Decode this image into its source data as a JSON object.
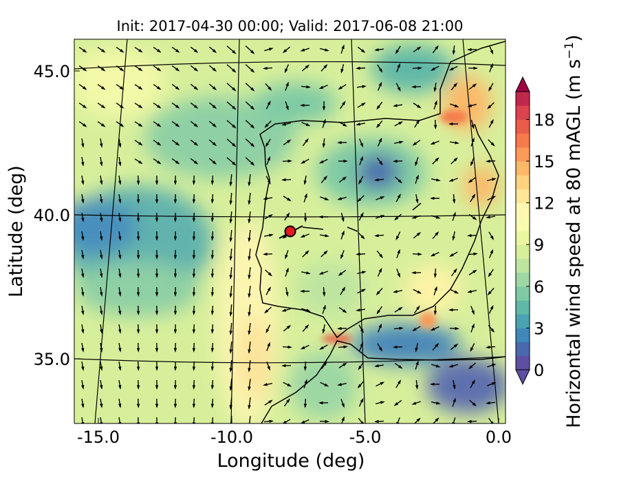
{
  "title": "Init: 2017-04-30 00:00; Valid: 2017-06-08 21:00",
  "chart_data": {
    "type": "heatmap",
    "title": "Init: 2017-04-30 00:00; Valid: 2017-06-08 21:00",
    "xlabel": "Longitude (deg)",
    "ylabel": "Latitude (deg)",
    "x_ticks": [
      "-15.0",
      "-10.0",
      "-5.0",
      "0.0"
    ],
    "y_ticks": [
      "35.0",
      "40.0",
      "45.0"
    ],
    "x_tick_values": [
      -15,
      -10,
      -5,
      0
    ],
    "y_tick_values": [
      35,
      40,
      45
    ],
    "xlim": [
      -15.9,
      0.4
    ],
    "ylim": [
      32.8,
      46.2
    ],
    "grid": "curved graticule (lat/lon lines)",
    "overlay": "wind vectors (arrows)",
    "marker": {
      "lon": -7.8,
      "lat": 39.4,
      "color": "#e41a1c"
    },
    "colorbar": {
      "label": "Horizontal wind speed at 80 mAGL (m s$^{-1}$)",
      "label_text": "Horizontal wind speed at 80 mAGL (m s",
      "label_sup": "−1",
      "label_close": ")",
      "ticks": [
        "0",
        "3",
        "6",
        "9",
        "12",
        "15",
        "18"
      ],
      "tick_values": [
        0,
        3,
        6,
        9,
        12,
        15,
        18
      ],
      "range": [
        0,
        20
      ],
      "extend": "both",
      "colormap": "Spectral_r",
      "colors": [
        "#5e4fa2",
        "#4a68ae",
        "#3f88b9",
        "#4aa3b2",
        "#60b8a7",
        "#7fcaa4",
        "#9dd7a4",
        "#bde5a0",
        "#d7ef9b",
        "#ebf7a0",
        "#f8fbb0",
        "#fff8b2",
        "#fee698",
        "#fed27e",
        "#fdb869",
        "#fb9a59",
        "#f57a4c",
        "#e85d4a",
        "#d9444e",
        "#c0284b"
      ],
      "over_color": "#9e0142",
      "under_color": "#5e4fa2"
    }
  }
}
